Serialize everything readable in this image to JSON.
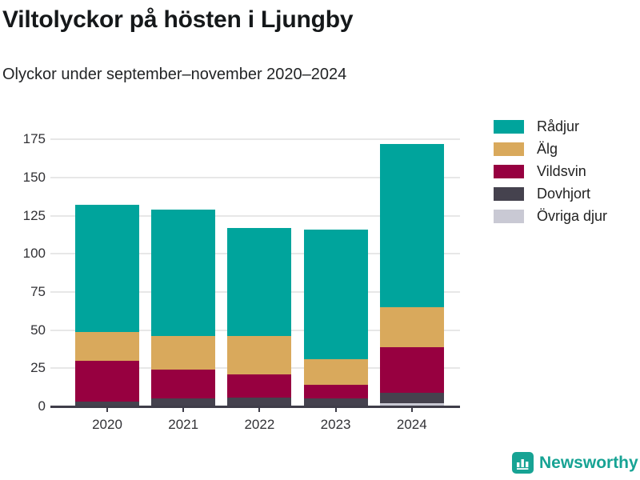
{
  "header": {
    "title": "Viltolyckor på hösten i Ljungby",
    "subtitle": "Olyckor under september–november 2020–2024"
  },
  "chart_data": {
    "type": "bar",
    "stacked": true,
    "title": "Viltolyckor på hösten i Ljungby",
    "subtitle": "Olyckor under september–november 2020–2024",
    "categories": [
      "2020",
      "2021",
      "2022",
      "2023",
      "2024"
    ],
    "series": [
      {
        "name": "Rådjur",
        "color": "#00a49c",
        "values": [
          83,
          83,
          71,
          85,
          107
        ]
      },
      {
        "name": "Älg",
        "color": "#d9a95c",
        "values": [
          19,
          22,
          25,
          17,
          26
        ]
      },
      {
        "name": "Vildsvin",
        "color": "#970040",
        "values": [
          27,
          19,
          15,
          9,
          30
        ]
      },
      {
        "name": "Dovhjort",
        "color": "#45424e",
        "values": [
          3,
          5,
          6,
          5,
          7
        ]
      },
      {
        "name": "Övriga djur",
        "color": "#c9c9d4",
        "values": [
          0,
          0,
          0,
          0,
          2
        ]
      }
    ],
    "totals": [
      132,
      129,
      117,
      116,
      172
    ],
    "xlabel": "",
    "ylabel": "",
    "ylim": [
      0,
      175
    ],
    "yticks": [
      0,
      25,
      50,
      75,
      100,
      125,
      150,
      175
    ],
    "grid": true,
    "legend_position": "top-right",
    "stack_bottom_to_top": [
      "Övriga djur",
      "Dovhjort",
      "Vildsvin",
      "Älg",
      "Rådjur"
    ]
  },
  "footer": {
    "brand": "Newsworthy",
    "brand_color": "#17a394"
  },
  "colors": {
    "grid": "#e7e7e7",
    "axis": "#3f3d49",
    "tick_text": "#313135"
  }
}
